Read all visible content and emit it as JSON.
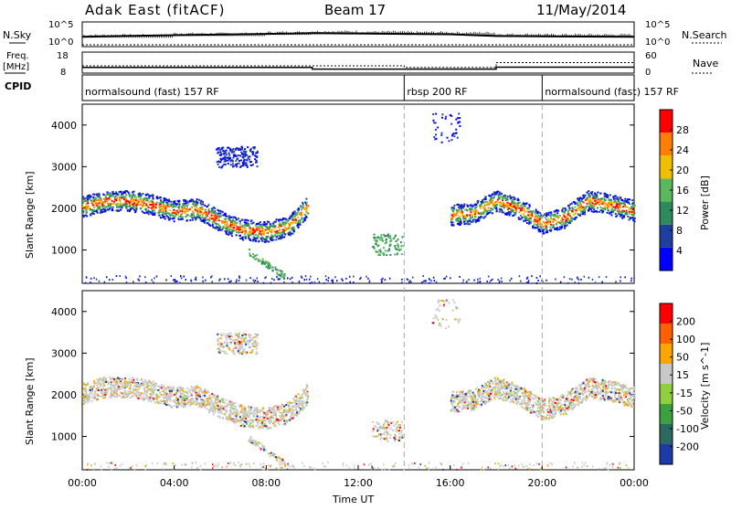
{
  "header": {
    "station": "Adak East (fitACF)",
    "beam": "Beam 17",
    "date": "11/May/2014"
  },
  "nsky": {
    "label": "N.Sky",
    "ticks_left": [
      "10^5",
      "10^0"
    ],
    "ticks_right": [
      "10^5",
      "10^0"
    ],
    "right_label": "N.Search"
  },
  "freq": {
    "label_line1": "Freq.",
    "label_line2": "[MHz]",
    "ticks_left": [
      "18",
      "8"
    ],
    "ticks_right": [
      "60",
      "0"
    ],
    "right_label": "Nave"
  },
  "cpid": {
    "label": "CPID",
    "segments": [
      {
        "name": "normalsound (fast) 157 RF",
        "start": 0,
        "end": 14
      },
      {
        "name": "rbsp 200 RF",
        "start": 14,
        "end": 20
      },
      {
        "name": "normalsound (fast) 157 RF",
        "start": 20,
        "end": 24
      }
    ]
  },
  "power_panel": {
    "ylabel": "Slant Range [km]",
    "yticks": [
      "1000",
      "2000",
      "3000",
      "4000"
    ],
    "colorbar_label": "Power [dB]",
    "colorbar_ticks": [
      "4",
      "8",
      "12",
      "16",
      "20",
      "24",
      "28"
    ],
    "colors": [
      "#0000ff",
      "#1e3ea0",
      "#2e8a5a",
      "#5cb85c",
      "#f0c000",
      "#ff8000",
      "#ff0000"
    ]
  },
  "velocity_panel": {
    "ylabel": "Slant Range [km]",
    "yticks": [
      "1000",
      "2000",
      "3000",
      "4000"
    ],
    "colorbar_label": "Velocity [m s^-1]",
    "colorbar_ticks": [
      "200",
      "100",
      "50",
      "15",
      "-15",
      "-50",
      "-100",
      "-200"
    ],
    "colors": [
      "#1c3aa8",
      "#2a6a60",
      "#3ca040",
      "#90d040",
      "#c8c8c8",
      "#ffa500",
      "#ff6000",
      "#ff0000"
    ]
  },
  "xaxis": {
    "label": "Time UT",
    "ticks": [
      "00:00",
      "04:00",
      "08:00",
      "12:00",
      "16:00",
      "20:00",
      "00:00"
    ]
  },
  "chart_data": [
    {
      "type": "line",
      "title": "Adak East (fitACF)  Beam 17  11/May/2014",
      "series": [
        {
          "name": "N.Sky",
          "x": [
            0,
            4,
            8,
            10,
            12,
            14,
            16,
            18,
            20,
            24
          ],
          "values": [
            2.0,
            2.4,
            2.7,
            2.9,
            2.8,
            2.7,
            2.6,
            2.2,
            2.1,
            2.0
          ]
        },
        {
          "name": "N.Search",
          "x": [
            0,
            24
          ],
          "values": [
            0,
            0
          ]
        }
      ],
      "xlabel": "",
      "ylabel": "",
      "xlim": [
        0,
        24
      ]
    },
    {
      "type": "line",
      "series": [
        {
          "name": "Freq.",
          "x": [
            0,
            10,
            10,
            18,
            18,
            24
          ],
          "values": [
            10.5,
            10.5,
            9.6,
            9.6,
            10.6,
            10.6
          ]
        },
        {
          "name": "Nave",
          "x": [
            0,
            14,
            14,
            18,
            18,
            24
          ],
          "values": [
            20,
            20,
            15,
            15,
            30,
            30
          ]
        }
      ],
      "xlim": [
        0,
        24
      ]
    },
    {
      "type": "heatmap",
      "title": "Power [dB]",
      "xlabel": "Time UT",
      "ylabel": "Slant Range [km]",
      "xlim": [
        0,
        24
      ],
      "ylim": [
        200,
        4500
      ],
      "bands": [
        {
          "x": [
            0,
            1,
            2,
            3,
            4,
            5,
            6,
            7,
            8,
            9,
            9.8
          ],
          "y": [
            2050,
            2200,
            2200,
            2100,
            1950,
            2000,
            1700,
            1500,
            1450,
            1600,
            2050
          ]
        },
        {
          "x": [
            16,
            17,
            18,
            19,
            20,
            21,
            22,
            23,
            24
          ],
          "y": [
            1850,
            1900,
            2200,
            2000,
            1650,
            1800,
            2200,
            2100,
            1950
          ]
        }
      ]
    },
    {
      "type": "heatmap",
      "title": "Velocity [m s^-1]",
      "xlabel": "Time UT",
      "ylabel": "Slant Range [km]",
      "xlim": [
        0,
        24
      ],
      "ylim": [
        200,
        4500
      ]
    }
  ]
}
